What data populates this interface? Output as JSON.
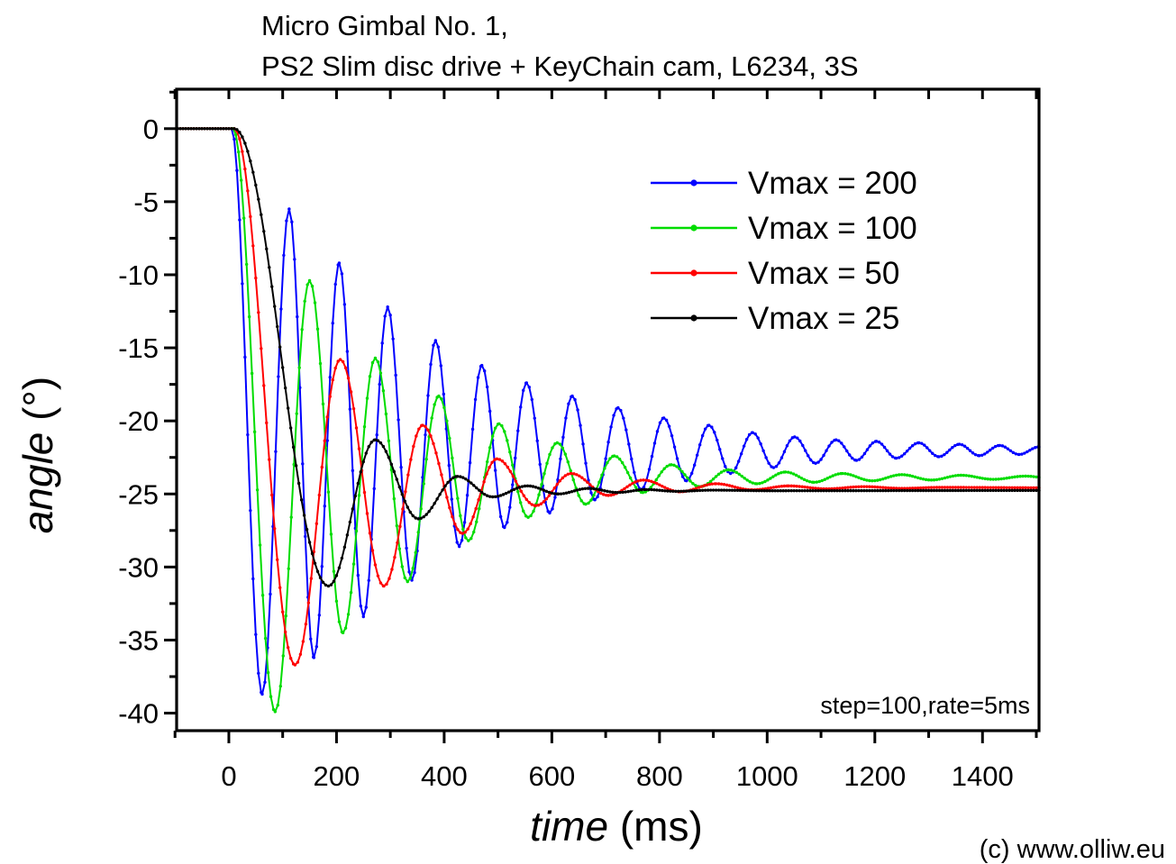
{
  "page": {
    "background": "#ffffff"
  },
  "watermark": "(c) www.olliw.eu",
  "chart_data": {
    "type": "line",
    "title_lines": [
      "Micro Gimbal No. 1,",
      "PS2 Slim disc drive + KeyChain cam, L6234, 3S"
    ],
    "xlabel": {
      "italic": "time",
      "unit": " (ms)"
    },
    "ylabel": {
      "italic": "angle",
      "unit": " (°)"
    },
    "xlim": [
      -97,
      1505
    ],
    "ylim": [
      -41.2,
      2.7
    ],
    "x_major_ticks": [
      0,
      200,
      400,
      600,
      800,
      1000,
      1200,
      1400
    ],
    "x_minor_ticks": [
      -100,
      100,
      300,
      500,
      700,
      900,
      1100,
      1300,
      1500
    ],
    "x_top_ticks": [
      -100,
      0,
      100,
      200,
      300,
      400,
      500,
      600,
      700,
      800,
      900,
      1000,
      1100,
      1200,
      1300,
      1400,
      1500
    ],
    "y_major_ticks": [
      0,
      -5,
      -10,
      -15,
      -20,
      -25,
      -30,
      -35,
      -40
    ],
    "y_minor_ticks": [
      2.5,
      -2.5,
      -7.5,
      -12.5,
      -17.5,
      -22.5,
      -27.5,
      -32.5,
      -37.5
    ],
    "grid": false,
    "legend": {
      "position": "upper-right"
    },
    "annotation": "step=100,rate=5ms",
    "sample_interval_ms": 5,
    "series": [
      {
        "label": "Vmax = 200",
        "color": "#0000FF",
        "settle_value": -21.9,
        "extrema": [
          [
            -95,
            0
          ],
          [
            5,
            0
          ],
          [
            62,
            -38.7
          ],
          [
            112,
            -5.5
          ],
          [
            158,
            -36.2
          ],
          [
            205,
            -9.2
          ],
          [
            250,
            -33.4
          ],
          [
            295,
            -12.2
          ],
          [
            340,
            -30.9
          ],
          [
            384,
            -14.5
          ],
          [
            428,
            -28.6
          ],
          [
            470,
            -16.2
          ],
          [
            512,
            -27.3
          ],
          [
            553,
            -17.4
          ],
          [
            596,
            -26.3
          ],
          [
            638,
            -18.3
          ],
          [
            680,
            -25.4
          ],
          [
            723,
            -19.1
          ],
          [
            766,
            -24.7
          ],
          [
            808,
            -19.8
          ],
          [
            850,
            -24.1
          ],
          [
            892,
            -20.3
          ],
          [
            932,
            -23.6
          ],
          [
            973,
            -20.8
          ],
          [
            1012,
            -23.2
          ],
          [
            1051,
            -21.1
          ],
          [
            1090,
            -22.9
          ],
          [
            1128,
            -21.3
          ],
          [
            1166,
            -22.7
          ],
          [
            1203,
            -21.4
          ],
          [
            1240,
            -22.55
          ],
          [
            1282,
            -21.5
          ],
          [
            1319,
            -22.45
          ],
          [
            1357,
            -21.6
          ],
          [
            1394,
            -22.38
          ],
          [
            1432,
            -21.68
          ],
          [
            1468,
            -22.3
          ],
          [
            1505,
            -21.78
          ],
          [
            1530,
            -22.2
          ]
        ]
      },
      {
        "label": "Vmax = 100",
        "color": "#00DC00",
        "settle_value": -23.9,
        "extrema": [
          [
            -95,
            0
          ],
          [
            8,
            0
          ],
          [
            86,
            -39.9
          ],
          [
            150,
            -10.4
          ],
          [
            212,
            -34.5
          ],
          [
            272,
            -15.7
          ],
          [
            332,
            -31.0
          ],
          [
            390,
            -18.3
          ],
          [
            445,
            -28.2
          ],
          [
            502,
            -20.2
          ],
          [
            556,
            -26.6
          ],
          [
            610,
            -21.5
          ],
          [
            663,
            -25.7
          ],
          [
            716,
            -22.4
          ],
          [
            769,
            -24.9
          ],
          [
            822,
            -23.0
          ],
          [
            875,
            -24.5
          ],
          [
            928,
            -23.35
          ],
          [
            981,
            -24.3
          ],
          [
            1034,
            -23.5
          ],
          [
            1087,
            -24.2
          ],
          [
            1140,
            -23.6
          ],
          [
            1195,
            -24.1
          ],
          [
            1250,
            -23.68
          ],
          [
            1305,
            -24.05
          ],
          [
            1360,
            -23.72
          ],
          [
            1420,
            -24.0
          ],
          [
            1480,
            -23.78
          ],
          [
            1530,
            -23.95
          ]
        ]
      },
      {
        "label": "Vmax = 50",
        "color": "#FF0000",
        "settle_value": -24.6,
        "extrema": [
          [
            -95,
            0
          ],
          [
            10,
            0
          ],
          [
            123,
            -36.7
          ],
          [
            207,
            -15.8
          ],
          [
            288,
            -31.3
          ],
          [
            360,
            -20.3
          ],
          [
            434,
            -27.7
          ],
          [
            498,
            -22.6
          ],
          [
            570,
            -25.8
          ],
          [
            636,
            -23.6
          ],
          [
            705,
            -25.1
          ],
          [
            770,
            -24.05
          ],
          [
            838,
            -24.85
          ],
          [
            905,
            -24.3
          ],
          [
            972,
            -24.72
          ],
          [
            1040,
            -24.45
          ],
          [
            1110,
            -24.65
          ],
          [
            1180,
            -24.5
          ],
          [
            1250,
            -24.62
          ],
          [
            1320,
            -24.55
          ],
          [
            1530,
            -24.58
          ]
        ]
      },
      {
        "label": "Vmax = 25",
        "color": "#000000",
        "settle_value": -24.75,
        "extrema": [
          [
            -95,
            0
          ],
          [
            10,
            0
          ],
          [
            185,
            -31.3
          ],
          [
            272,
            -21.3
          ],
          [
            352,
            -26.7
          ],
          [
            425,
            -23.8
          ],
          [
            490,
            -25.2
          ],
          [
            555,
            -24.45
          ],
          [
            612,
            -25.0
          ],
          [
            668,
            -24.62
          ],
          [
            722,
            -24.9
          ],
          [
            775,
            -24.7
          ],
          [
            830,
            -24.82
          ],
          [
            900,
            -24.74
          ],
          [
            1000,
            -24.78
          ],
          [
            1530,
            -24.76
          ]
        ]
      }
    ]
  }
}
